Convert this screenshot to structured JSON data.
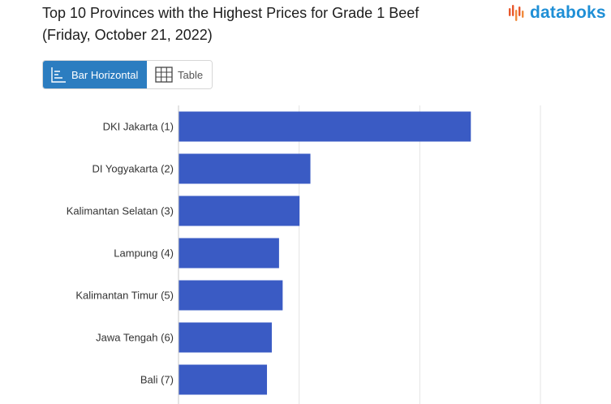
{
  "header": {
    "title_line1": "Top 10 Provinces with the Highest Prices for Grade 1 Beef",
    "title_line2": "(Friday, October 21, 2022)"
  },
  "brand": {
    "name": "databoks",
    "color": "#1f8fd6"
  },
  "tabs": [
    {
      "label": "Bar Horizontal",
      "icon": "bar-horizontal-icon",
      "active": true
    },
    {
      "label": "Table",
      "icon": "table-icon",
      "active": false
    }
  ],
  "chart_data": {
    "type": "bar",
    "orientation": "horizontal",
    "categories": [
      "DKI Jakarta (1)",
      "DI Yogyakarta (2)",
      "Kalimantan Selatan (3)",
      "Lampung (4)",
      "Kalimantan Timur (5)",
      "Jawa Tengah (6)",
      "Bali (7)"
    ],
    "values": [
      242,
      109,
      100,
      83,
      86,
      77,
      73
    ],
    "xlim": [
      0,
      300
    ],
    "grid": true,
    "bar_color": "#3a5bc4"
  }
}
